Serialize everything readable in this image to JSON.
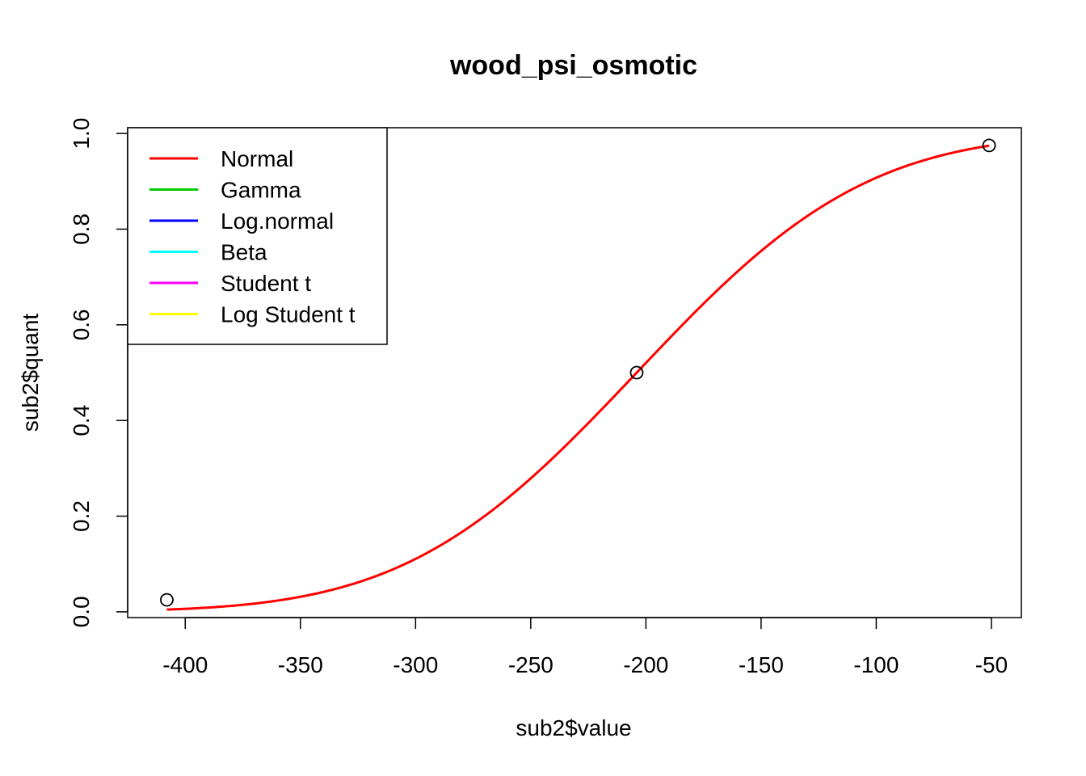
{
  "chart_data": {
    "type": "line",
    "title": "wood_psi_osmotic",
    "xlabel": "sub2$value",
    "ylabel": "sub2$quant",
    "xlim": [
      -425,
      -37
    ],
    "ylim": [
      -0.012,
      1.012
    ],
    "x_ticks": [
      -400,
      -350,
      -300,
      -250,
      -200,
      -150,
      -100,
      -50
    ],
    "x_tick_labels": [
      "-400",
      "-350",
      "-300",
      "-250",
      "-200",
      "-150",
      "-100",
      "-50"
    ],
    "y_ticks": [
      0.0,
      0.2,
      0.4,
      0.6,
      0.8,
      1.0
    ],
    "y_tick_labels": [
      "0.0",
      "0.2",
      "0.4",
      "0.6",
      "0.8",
      "1.0"
    ],
    "grid": false,
    "legend_position": "top-left",
    "points": {
      "x": [
        -408,
        -204,
        -51
      ],
      "y": [
        0.025,
        0.5,
        0.975
      ]
    },
    "fitted_curve": {
      "name": "Normal",
      "distribution": "normal",
      "mean": -204,
      "sd": 78.5,
      "x_range": [
        -408,
        -51
      ],
      "color": "#ff0000"
    },
    "legend": [
      {
        "name": "Normal",
        "color": "#ff0000"
      },
      {
        "name": "Gamma",
        "color": "#00cd00"
      },
      {
        "name": "Log.normal",
        "color": "#0000ff"
      },
      {
        "name": "Beta",
        "color": "#00ffff"
      },
      {
        "name": "Student t",
        "color": "#ff00ff"
      },
      {
        "name": "Log Student t",
        "color": "#ffff00"
      }
    ]
  }
}
